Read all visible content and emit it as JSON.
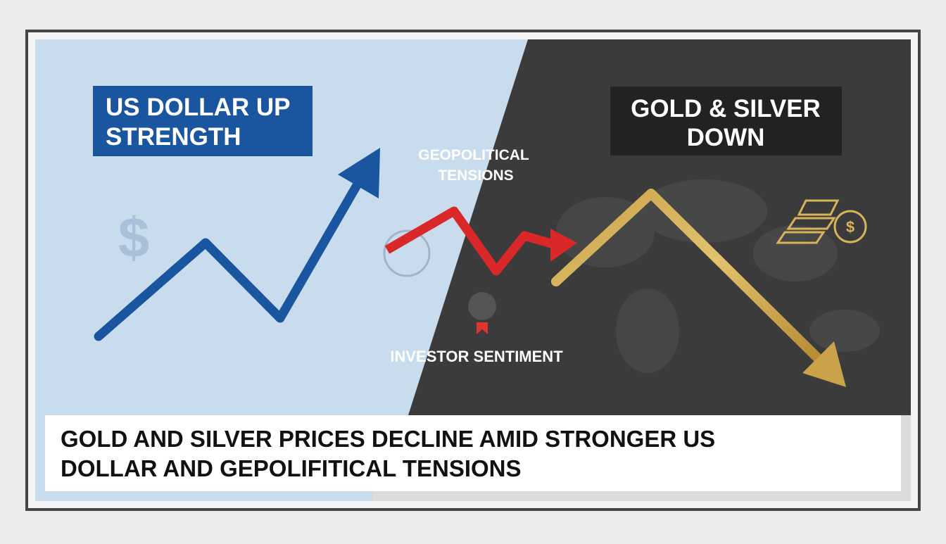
{
  "left_label": {
    "lines": [
      "US DOLLAR UP",
      "STRENGTH"
    ]
  },
  "right_label": {
    "lines": [
      "GOLD & SILVER",
      "DOWN"
    ]
  },
  "center_labels": {
    "top": [
      "GEOPOLITICAL",
      "TENSIONS"
    ],
    "bottom": "INVESTOR SENTIMENT"
  },
  "headline": {
    "lines": [
      "GOLD AND SILVER PRICES DECLINE AMID STRONGER US",
      "DOLLAR AND GEPOLIFITICAL TENSIONS"
    ]
  }
}
